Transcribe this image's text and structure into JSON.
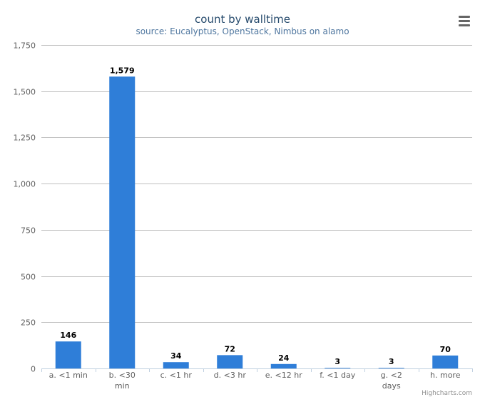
{
  "chart_data": {
    "type": "bar",
    "title": "count by walltime",
    "subtitle": "source: Eucalyptus, OpenStack, Nimbus on alamo",
    "categories": [
      "a. <1 min",
      "b. <30 min",
      "c. <1 hr",
      "d. <3 hr",
      "e. <12 hr",
      "f. <1 day",
      "g. <2 days",
      "h. more"
    ],
    "category_lines": [
      [
        "a. <1 min"
      ],
      [
        "b. <30",
        "min"
      ],
      [
        "c. <1 hr"
      ],
      [
        "d. <3 hr"
      ],
      [
        "e. <12 hr"
      ],
      [
        "f. <1 day"
      ],
      [
        "g. <2",
        "days"
      ],
      [
        "h. more"
      ]
    ],
    "values": [
      146,
      1579,
      34,
      72,
      24,
      3,
      3,
      70
    ],
    "value_labels": [
      "146",
      "1,579",
      "34",
      "72",
      "24",
      "3",
      "3",
      "70"
    ],
    "ylim": [
      0,
      1750
    ],
    "yticks": [
      0,
      250,
      500,
      750,
      1000,
      1250,
      1500,
      1750
    ],
    "ytick_labels": [
      "0",
      "250",
      "500",
      "750",
      "1,000",
      "1,250",
      "1,500",
      "1,750"
    ],
    "xlabel": "",
    "ylabel": "",
    "grid": true,
    "legend": "none",
    "bar_color": "#2f7ed8"
  },
  "credits": "Highcharts.com",
  "menu_icon": "hamburger-menu-icon"
}
